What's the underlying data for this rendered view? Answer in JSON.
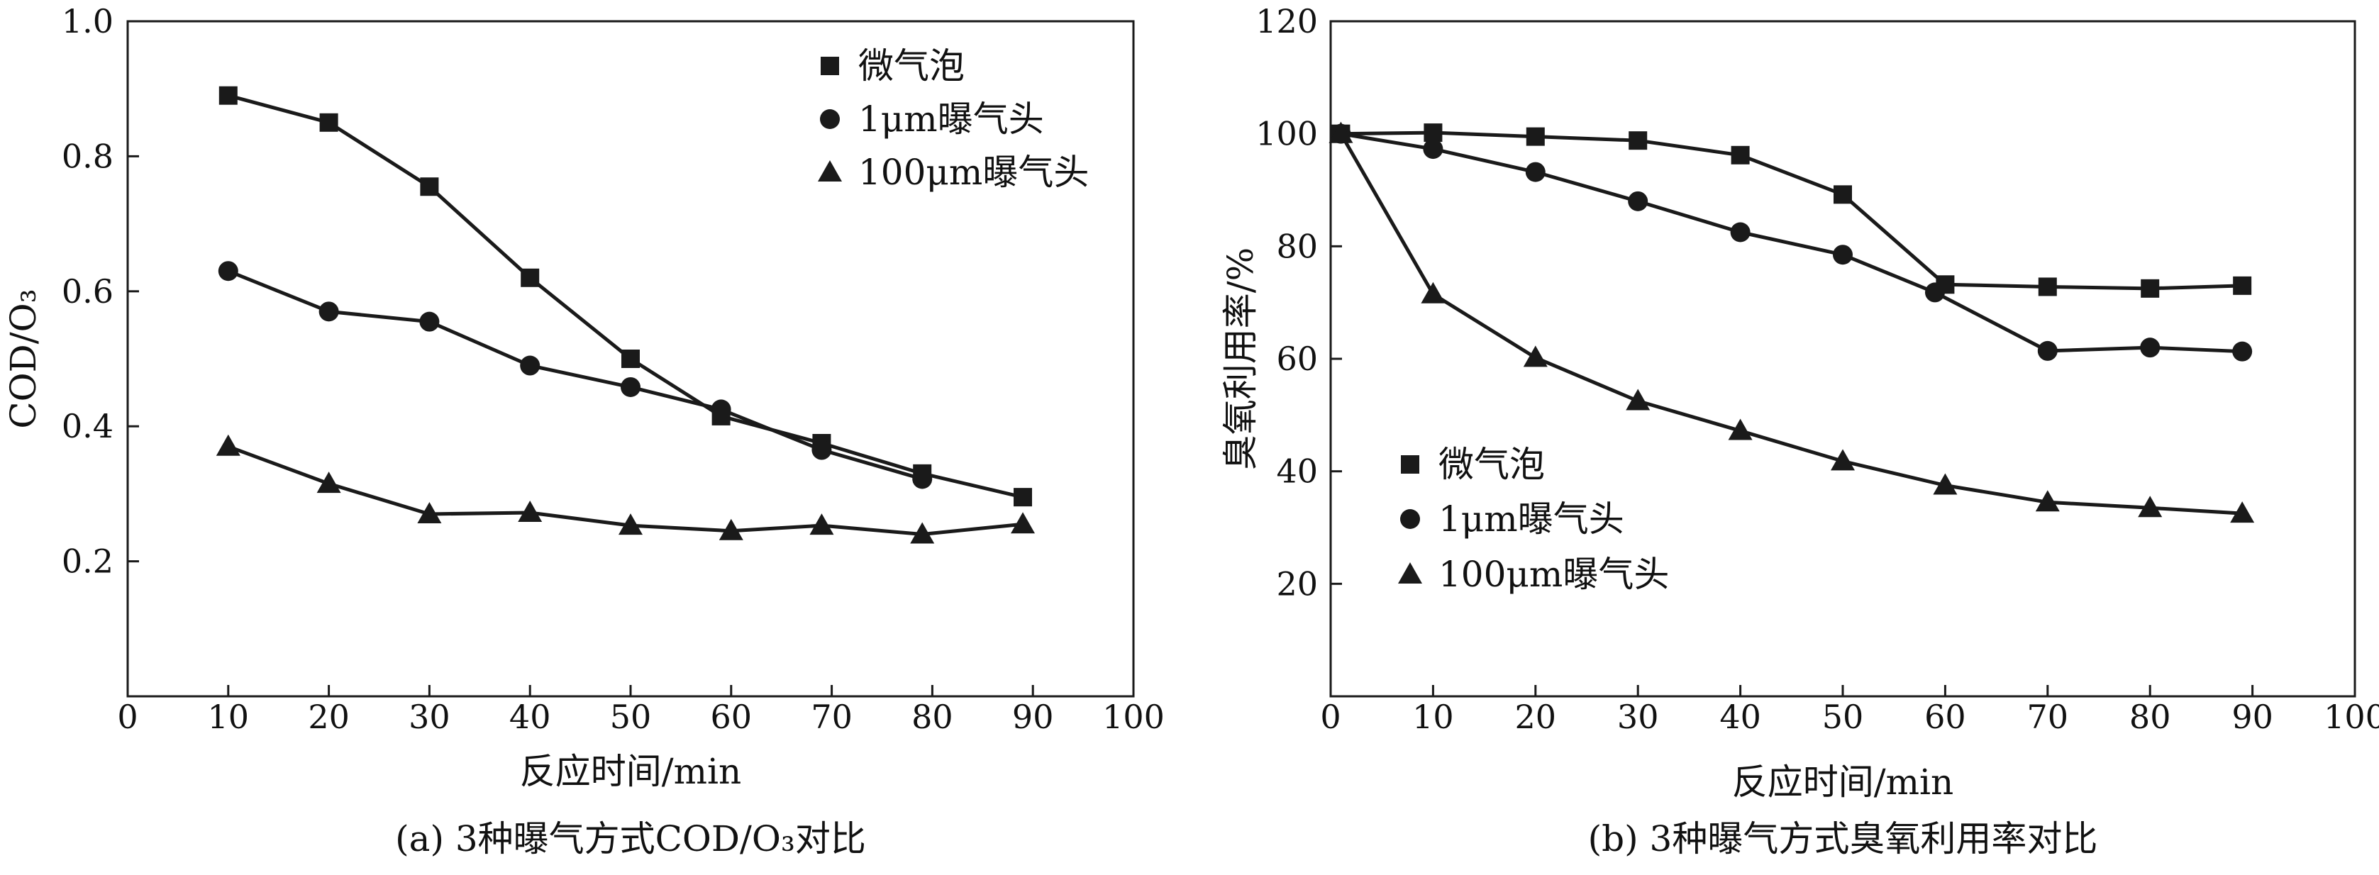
{
  "chart_data": [
    {
      "id": "a",
      "type": "line",
      "caption": "(a) 3种曝气方式COD/O₃对比",
      "xlabel": "反应时间/min",
      "ylabel": "COD/O₃",
      "xlim": [
        0,
        100
      ],
      "ylim": [
        0,
        1.0
      ],
      "xticks": [
        0,
        10,
        20,
        30,
        40,
        50,
        60,
        70,
        80,
        90,
        100
      ],
      "xtick_labels": [
        "0",
        "10",
        "20",
        "30",
        "40",
        "50",
        "60",
        "70",
        "80",
        "90",
        "100"
      ],
      "yticks": [
        0.2,
        0.4,
        0.6,
        0.8,
        1.0
      ],
      "ytick_labels": [
        "0.2",
        "0.4",
        "0.6",
        "0.8",
        "1.0"
      ],
      "legend_position": "top-right",
      "series": [
        {
          "name": "微气泡",
          "marker": "square",
          "x": [
            10,
            20,
            30,
            40,
            50,
            59,
            69,
            79,
            89
          ],
          "y": [
            0.89,
            0.85,
            0.755,
            0.62,
            0.5,
            0.415,
            0.375,
            0.33,
            0.295
          ]
        },
        {
          "name": "1μm曝气头",
          "marker": "circle",
          "x": [
            10,
            20,
            30,
            40,
            50,
            59,
            69,
            79
          ],
          "y": [
            0.63,
            0.57,
            0.555,
            0.49,
            0.458,
            0.425,
            0.365,
            0.322
          ]
        },
        {
          "name": "100μm曝气头",
          "marker": "triangle",
          "x": [
            10,
            20,
            30,
            40,
            50,
            60,
            69,
            79,
            89
          ],
          "y": [
            0.37,
            0.315,
            0.27,
            0.272,
            0.253,
            0.245,
            0.253,
            0.24,
            0.255
          ]
        }
      ]
    },
    {
      "id": "b",
      "type": "line",
      "caption": "(b) 3种曝气方式臭氧利用率对比",
      "xlabel": "反应时间/min",
      "ylabel": "臭氧利用率/%",
      "xlim": [
        0,
        100
      ],
      "ylim": [
        0,
        120
      ],
      "xticks": [
        0,
        10,
        20,
        30,
        40,
        50,
        60,
        70,
        80,
        90,
        100
      ],
      "xtick_labels": [
        "0",
        "10",
        "20",
        "30",
        "40",
        "50",
        "60",
        "70",
        "80",
        "90",
        "100"
      ],
      "yticks": [
        20,
        40,
        60,
        80,
        100,
        120
      ],
      "ytick_labels": [
        "20",
        "40",
        "60",
        "80",
        "100",
        "120"
      ],
      "legend_position": "bottom-left",
      "series": [
        {
          "name": "微气泡",
          "marker": "square",
          "x": [
            1,
            10,
            20,
            30,
            40,
            50,
            60,
            70,
            80,
            89
          ],
          "y": [
            100,
            100.2,
            99.5,
            98.8,
            96.2,
            89.2,
            73.2,
            72.8,
            72.5,
            73
          ]
        },
        {
          "name": "1μm曝气头",
          "marker": "circle",
          "x": [
            1,
            10,
            20,
            30,
            40,
            50,
            59,
            70,
            80,
            89
          ],
          "y": [
            100,
            97.3,
            93.2,
            88,
            82.5,
            78.5,
            71.8,
            61.4,
            62,
            61.3
          ]
        },
        {
          "name": "100μm曝气头",
          "marker": "triangle",
          "x": [
            1,
            10,
            20,
            30,
            40,
            50,
            60,
            70,
            80,
            89
          ],
          "y": [
            100,
            71.5,
            60.2,
            52.5,
            47.2,
            41.8,
            37.5,
            34.5,
            33.5,
            32.5
          ]
        }
      ]
    }
  ]
}
